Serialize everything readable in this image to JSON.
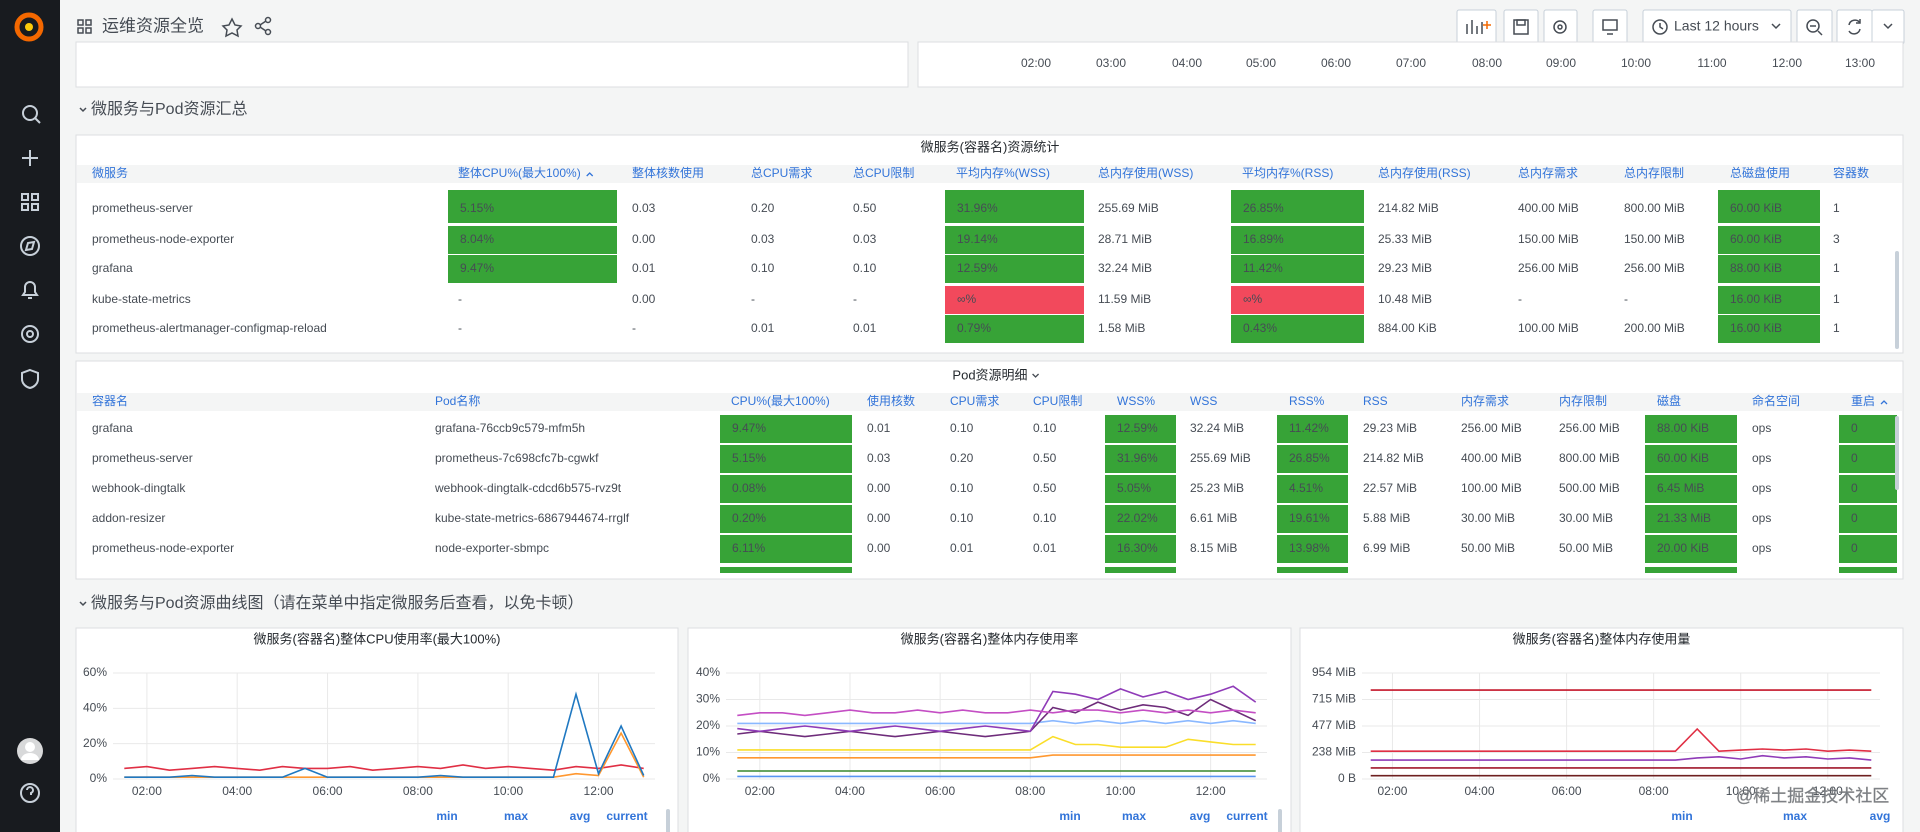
{
  "header": {
    "title": "运维资源全览",
    "time_range": "Last 12 hours"
  },
  "top_panel": {
    "xticks": [
      "02:00",
      "03:00",
      "04:00",
      "05:00",
      "06:00",
      "07:00",
      "08:00",
      "09:00",
      "10:00",
      "11:00",
      "12:00",
      "13:00"
    ]
  },
  "rows": [
    "微服务与Pod资源汇总",
    "微服务与Pod资源曲线图（请在菜单中指定微服务后查看，以免卡顿）"
  ],
  "tables": [
    {
      "title": "微服务(容器名)资源统计",
      "sort_column": 1,
      "colored_columns": [
        1,
        5,
        7,
        11
      ],
      "plain_cells": [
        [
          3,
          1
        ],
        [
          4,
          1
        ]
      ],
      "alert_cells": [
        [
          3,
          5
        ],
        [
          3,
          7
        ]
      ],
      "ok_color": "#37a337",
      "alert_color": "#f2495c",
      "columns": [
        "微服务",
        "整体CPU%(最大100%)",
        "整体核数使用",
        "总CPU需求",
        "总CPU限制",
        "平均内存%(WSS)",
        "总内存使用(WSS)",
        "平均内存%(RSS)",
        "总内存使用(RSS)",
        "总内存需求",
        "总内存限制",
        "总磁盘使用",
        "容器数"
      ],
      "rows": [
        [
          "prometheus-server",
          "5.15%",
          "0.03",
          "0.20",
          "0.50",
          "31.96%",
          "255.69 MiB",
          "26.85%",
          "214.82 MiB",
          "400.00 MiB",
          "800.00 MiB",
          "60.00 KiB",
          "1"
        ],
        [
          "prometheus-node-exporter",
          "8.04%",
          "0.00",
          "0.03",
          "0.03",
          "19.14%",
          "28.71 MiB",
          "16.89%",
          "25.33 MiB",
          "150.00 MiB",
          "150.00 MiB",
          "60.00 KiB",
          "3"
        ],
        [
          "grafana",
          "9.47%",
          "0.01",
          "0.10",
          "0.10",
          "12.59%",
          "32.24 MiB",
          "11.42%",
          "29.23 MiB",
          "256.00 MiB",
          "256.00 MiB",
          "88.00 KiB",
          "1"
        ],
        [
          "kube-state-metrics",
          "-",
          "0.00",
          "-",
          "-",
          "∞%",
          "11.59 MiB",
          "∞%",
          "10.48 MiB",
          "-",
          "-",
          "16.00 KiB",
          "1"
        ],
        [
          "prometheus-alertmanager-configmap-reload",
          "-",
          "-",
          "0.01",
          "0.01",
          "0.79%",
          "1.58 MiB",
          "0.43%",
          "884.00 KiB",
          "100.00 MiB",
          "200.00 MiB",
          "16.00 KiB",
          "1"
        ]
      ]
    },
    {
      "title": "Pod资源明细",
      "title_menu": true,
      "sort_column": 14,
      "colored_columns": [
        2,
        6,
        8,
        12,
        14
      ],
      "plain_cells": [],
      "alert_cells": [],
      "ok_color": "#37a337",
      "alert_color": "#f2495c",
      "columns": [
        "容器名",
        "Pod名称",
        "CPU%(最大100%)",
        "使用核数",
        "CPU需求",
        "CPU限制",
        "WSS%",
        "WSS",
        "RSS%",
        "RSS",
        "内存需求",
        "内存限制",
        "磁盘",
        "命名空间",
        "重启"
      ],
      "rows": [
        [
          "grafana",
          "grafana-76ccb9c579-mfm5h",
          "9.47%",
          "0.01",
          "0.10",
          "0.10",
          "12.59%",
          "32.24 MiB",
          "11.42%",
          "29.23 MiB",
          "256.00 MiB",
          "256.00 MiB",
          "88.00 KiB",
          "ops",
          "0"
        ],
        [
          "prometheus-server",
          "prometheus-7c698cfc7b-cgwkf",
          "5.15%",
          "0.03",
          "0.20",
          "0.50",
          "31.96%",
          "255.69 MiB",
          "26.85%",
          "214.82 MiB",
          "400.00 MiB",
          "800.00 MiB",
          "60.00 KiB",
          "ops",
          "0"
        ],
        [
          "webhook-dingtalk",
          "webhook-dingtalk-cdcd6b575-rvz9t",
          "0.08%",
          "0.00",
          "0.10",
          "0.50",
          "5.05%",
          "25.23 MiB",
          "4.51%",
          "22.57 MiB",
          "100.00 MiB",
          "500.00 MiB",
          "6.45 MiB",
          "ops",
          "0"
        ],
        [
          "addon-resizer",
          "kube-state-metrics-6867944674-rrglf",
          "0.20%",
          "0.00",
          "0.10",
          "0.10",
          "22.02%",
          "6.61 MiB",
          "19.61%",
          "5.88 MiB",
          "30.00 MiB",
          "30.00 MiB",
          "21.33 MiB",
          "ops",
          "0"
        ],
        [
          "prometheus-node-exporter",
          "node-exporter-sbmpc",
          "6.11%",
          "0.00",
          "0.01",
          "0.01",
          "16.30%",
          "8.15 MiB",
          "13.98%",
          "6.99 MiB",
          "50.00 MiB",
          "50.00 MiB",
          "20.00 KiB",
          "ops",
          "0"
        ]
      ]
    }
  ],
  "charts": [
    {
      "type": "line",
      "title": "微服务(容器名)整体CPU使用率(最大100%)",
      "legend_columns": [
        "min",
        "max",
        "avg",
        "current"
      ],
      "x": [
        1.5,
        2,
        2.5,
        3,
        3.5,
        4,
        4.5,
        5,
        5.5,
        6,
        6.5,
        7,
        7.5,
        8,
        8.5,
        9,
        9.5,
        10,
        10.5,
        11,
        11.5,
        12,
        12.5,
        13
      ],
      "xlim": [
        1.25,
        13.25
      ],
      "xticks": [
        {
          "value": 2,
          "label": "02:00"
        },
        {
          "value": 4,
          "label": "04:00"
        },
        {
          "value": 6,
          "label": "06:00"
        },
        {
          "value": 8,
          "label": "08:00"
        },
        {
          "value": 10,
          "label": "10:00"
        },
        {
          "value": 12,
          "label": "12:00"
        }
      ],
      "ylim": [
        0,
        60
      ],
      "yticks": [
        {
          "value": 60,
          "label": "60%"
        },
        {
          "value": 40,
          "label": "40%"
        },
        {
          "value": 20,
          "label": "20%"
        },
        {
          "value": 0,
          "label": "0%"
        }
      ],
      "series": [
        {
          "color": "#e02f44",
          "values": [
            6,
            7,
            5,
            6,
            7,
            6,
            5,
            7,
            6,
            6,
            7,
            5,
            6,
            7,
            6,
            8,
            6,
            7,
            6,
            5,
            7,
            6,
            8,
            6
          ]
        },
        {
          "color": "#ff9830",
          "values": [
            1,
            1,
            1,
            1,
            1,
            1,
            1,
            1,
            1,
            1,
            1,
            1,
            1,
            1,
            1,
            1,
            1,
            1,
            1,
            1,
            3,
            2,
            26,
            1
          ]
        },
        {
          "color": "#1f78c1",
          "values": [
            1,
            1,
            1,
            2,
            1,
            1,
            1,
            1,
            6,
            1,
            1,
            1,
            1,
            1,
            2,
            1,
            1,
            1,
            1,
            1,
            48,
            3,
            30,
            2
          ]
        }
      ]
    },
    {
      "type": "line",
      "title": "微服务(容器名)整体内存使用率",
      "legend_columns": [
        "min",
        "max",
        "avg",
        "current"
      ],
      "x": [
        1.5,
        2,
        2.5,
        3,
        3.5,
        4,
        4.5,
        5,
        5.5,
        6,
        6.5,
        7,
        7.5,
        8,
        8.5,
        9,
        9.5,
        10,
        10.5,
        11,
        11.5,
        12,
        12.5,
        13
      ],
      "xlim": [
        1.25,
        13.25
      ],
      "xticks": [
        {
          "value": 2,
          "label": "02:00"
        },
        {
          "value": 4,
          "label": "04:00"
        },
        {
          "value": 6,
          "label": "06:00"
        },
        {
          "value": 8,
          "label": "08:00"
        },
        {
          "value": 10,
          "label": "10:00"
        },
        {
          "value": 12,
          "label": "12:00"
        }
      ],
      "ylim": [
        0,
        40
      ],
      "yticks": [
        {
          "value": 40,
          "label": "40%"
        },
        {
          "value": 30,
          "label": "30%"
        },
        {
          "value": 20,
          "label": "20%"
        },
        {
          "value": 10,
          "label": "10%"
        },
        {
          "value": 0,
          "label": "0%"
        }
      ],
      "series": [
        {
          "color": "#5794f2",
          "values": [
            1,
            1,
            1,
            1,
            1,
            1,
            1,
            1,
            1,
            1,
            1,
            1,
            1,
            1,
            1,
            1,
            1,
            1,
            1,
            1,
            1,
            1,
            1,
            1
          ]
        },
        {
          "color": "#37872d",
          "values": [
            3,
            3,
            3,
            3,
            3,
            3,
            3,
            3,
            3,
            3,
            3,
            3,
            3,
            3,
            3,
            3,
            3,
            3,
            3,
            3,
            3,
            3,
            3,
            3
          ]
        },
        {
          "color": "#ff9830",
          "values": [
            8,
            8,
            8,
            8,
            8,
            8,
            8,
            8,
            8,
            8,
            8,
            8,
            8,
            8,
            9,
            9,
            9,
            9,
            9,
            9,
            9,
            9,
            9,
            9
          ]
        },
        {
          "color": "#fade2a",
          "values": [
            11,
            11,
            11,
            11,
            11,
            11,
            11,
            11,
            11,
            11,
            11,
            11,
            11,
            11,
            16,
            13,
            13,
            12,
            12,
            12,
            15,
            14,
            13,
            13
          ]
        },
        {
          "color": "#8ab8ff",
          "values": [
            21,
            21,
            21,
            21,
            21,
            21,
            21,
            21,
            21,
            21,
            21,
            21,
            21,
            21,
            22,
            21,
            22,
            21,
            22,
            21,
            22,
            21,
            22,
            21
          ]
        },
        {
          "color": "#6e2c7a",
          "values": [
            17,
            18,
            17,
            16,
            17,
            18,
            17,
            16,
            17,
            18,
            17,
            16,
            17,
            18,
            27,
            25,
            29,
            26,
            28,
            27,
            24,
            30,
            26,
            22
          ]
        },
        {
          "color": "#8f3bb8",
          "values": [
            19,
            18,
            19,
            20,
            19,
            18,
            19,
            20,
            19,
            18,
            19,
            20,
            19,
            18,
            33,
            32,
            30,
            34,
            31,
            33,
            30,
            32,
            35,
            29
          ]
        },
        {
          "color": "#c44ec4",
          "values": [
            24,
            25,
            25,
            24,
            25,
            26,
            25,
            25,
            26,
            25,
            26,
            25,
            25,
            26,
            25,
            26,
            26,
            25,
            26,
            25,
            26,
            25,
            26,
            25
          ]
        }
      ]
    },
    {
      "type": "line",
      "title": "微服务(容器名)整体内存使用量",
      "legend_columns": [
        "min",
        "max",
        "avg"
      ],
      "x": [
        1.5,
        2,
        2.5,
        3,
        3.5,
        4,
        4.5,
        5,
        5.5,
        6,
        6.5,
        7,
        7.5,
        8,
        8.5,
        9,
        9.5,
        10,
        10.5,
        11,
        11.5,
        12,
        12.5,
        13
      ],
      "xlim": [
        1.3,
        13.2
      ],
      "xticks": [
        {
          "value": 2,
          "label": "02:00"
        },
        {
          "value": 4,
          "label": "04:00"
        },
        {
          "value": 6,
          "label": "06:00"
        },
        {
          "value": 8,
          "label": "08:00"
        },
        {
          "value": 10,
          "label": "10:00"
        },
        {
          "value": 12,
          "label": "12:00"
        }
      ],
      "ylim": [
        0,
        954
      ],
      "yticks": [
        {
          "value": 954,
          "label": "954 MiB"
        },
        {
          "value": 715,
          "label": "715 MiB"
        },
        {
          "value": 477,
          "label": "477 MiB"
        },
        {
          "value": 238,
          "label": "238 MiB"
        },
        {
          "value": 0,
          "label": "0 B"
        }
      ],
      "series": [
        {
          "color": "#6d1f1f",
          "values": [
            30,
            30,
            30,
            30,
            30,
            30,
            30,
            30,
            30,
            30,
            30,
            30,
            30,
            30,
            30,
            30,
            30,
            30,
            30,
            30,
            30,
            30,
            30,
            30
          ]
        },
        {
          "color": "#a1182c",
          "values": [
            100,
            100,
            100,
            100,
            100,
            100,
            100,
            100,
            100,
            100,
            100,
            100,
            100,
            100,
            100,
            100,
            100,
            100,
            100,
            100,
            100,
            100,
            100,
            100
          ]
        },
        {
          "color": "#8f3bb8",
          "values": [
            170,
            170,
            170,
            170,
            170,
            170,
            170,
            170,
            170,
            170,
            170,
            170,
            170,
            170,
            170,
            190,
            200,
            180,
            210,
            190,
            200,
            180,
            190,
            170
          ]
        },
        {
          "color": "#e02f44",
          "values": [
            250,
            250,
            250,
            250,
            250,
            250,
            250,
            250,
            250,
            250,
            250,
            250,
            250,
            250,
            250,
            450,
            250,
            260,
            270,
            260,
            270,
            250,
            260,
            250
          ]
        },
        {
          "color": "#c4162a",
          "values": [
            800,
            800,
            800,
            800,
            800,
            800,
            800,
            800,
            800,
            800,
            800,
            800,
            800,
            800,
            800,
            800,
            800,
            800,
            800,
            800,
            800,
            800,
            800,
            800
          ]
        }
      ]
    }
  ]
}
